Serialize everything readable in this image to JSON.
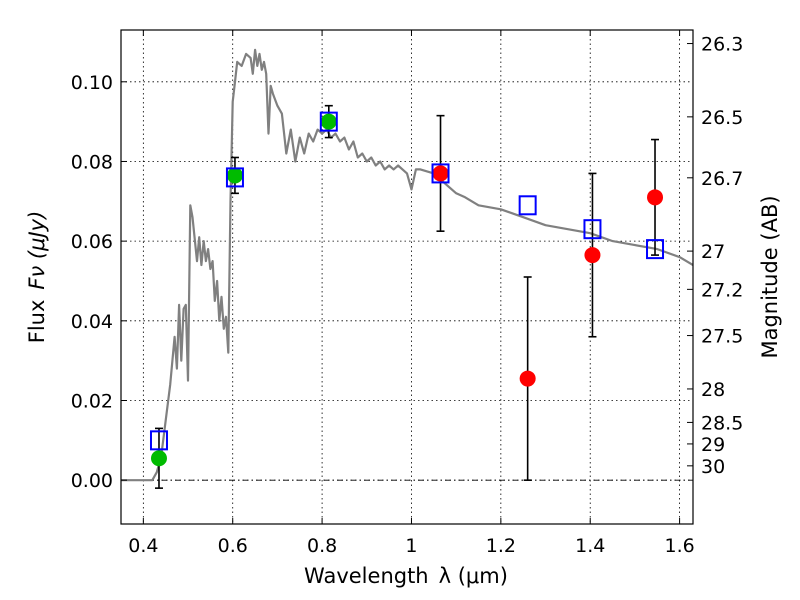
{
  "chart_data": {
    "type": "scatter",
    "title": "",
    "xlabel": "Wavelength",
    "xlabel_unit": "λ (μm)",
    "ylabel": "Flux",
    "ylabel_unit": "Fν (μJy)",
    "y2label": "Magnitude (AB)",
    "xlim": [
      0.35,
      1.63
    ],
    "ylim": [
      -0.011,
      0.113
    ],
    "grid": true,
    "x_ticks": [
      0.4,
      0.6,
      0.8,
      1.0,
      1.2,
      1.4,
      1.6
    ],
    "x_tick_labels": [
      "0.4",
      "0.6",
      "0.8",
      "1",
      "1.2",
      "1.4",
      "1.6"
    ],
    "y_ticks": [
      0.0,
      0.02,
      0.04,
      0.06,
      0.08,
      0.1
    ],
    "y_tick_labels": [
      "0.00",
      "0.02",
      "0.04",
      "0.06",
      "0.08",
      "0.10"
    ],
    "mag_ticks": [
      {
        "label": "26.3",
        "flux": 0.1096
      },
      {
        "label": "26.5",
        "flux": 0.0912
      },
      {
        "label": "26.7",
        "flux": 0.0759
      },
      {
        "label": "27",
        "flux": 0.0575
      },
      {
        "label": "27.2",
        "flux": 0.0479
      },
      {
        "label": "27.5",
        "flux": 0.0363
      },
      {
        "label": "28",
        "flux": 0.0229
      },
      {
        "label": "28.5",
        "flux": 0.0145
      },
      {
        "label": "29",
        "flux": 0.0091
      },
      {
        "label": "30",
        "flux": 0.0036
      }
    ],
    "colors": {
      "model": "#808080",
      "green_points": "#00bb00",
      "red_points": "#ff0000",
      "model_boxes": "#0000ff",
      "errorbars": "#000000"
    },
    "series": [
      {
        "name": "model_sed",
        "kind": "line",
        "x": [
          0.35,
          0.42,
          0.43,
          0.44,
          0.45,
          0.46,
          0.47,
          0.475,
          0.48,
          0.485,
          0.49,
          0.495,
          0.5,
          0.505,
          0.51,
          0.52,
          0.525,
          0.53,
          0.535,
          0.54,
          0.545,
          0.55,
          0.555,
          0.56,
          0.565,
          0.57,
          0.575,
          0.58,
          0.585,
          0.59,
          0.595,
          0.6,
          0.605,
          0.61,
          0.62,
          0.63,
          0.64,
          0.645,
          0.65,
          0.655,
          0.66,
          0.665,
          0.67,
          0.675,
          0.68,
          0.685,
          0.69,
          0.7,
          0.71,
          0.72,
          0.73,
          0.74,
          0.75,
          0.76,
          0.77,
          0.78,
          0.79,
          0.8,
          0.81,
          0.82,
          0.83,
          0.84,
          0.85,
          0.86,
          0.87,
          0.88,
          0.89,
          0.9,
          0.91,
          0.92,
          0.93,
          0.94,
          0.95,
          0.96,
          0.97,
          0.98,
          0.99,
          1.0,
          1.01,
          1.02,
          1.05,
          1.08,
          1.1,
          1.12,
          1.15,
          1.2,
          1.25,
          1.3,
          1.35,
          1.4,
          1.45,
          1.5,
          1.55,
          1.6,
          1.63
        ],
        "y": [
          0.0,
          0.0,
          0.002,
          0.006,
          0.015,
          0.024,
          0.036,
          0.028,
          0.044,
          0.03,
          0.043,
          0.044,
          0.025,
          0.069,
          0.066,
          0.055,
          0.061,
          0.054,
          0.06,
          0.055,
          0.058,
          0.053,
          0.055,
          0.045,
          0.05,
          0.04,
          0.046,
          0.038,
          0.041,
          0.032,
          0.07,
          0.095,
          0.1,
          0.105,
          0.104,
          0.107,
          0.106,
          0.102,
          0.108,
          0.104,
          0.107,
          0.103,
          0.105,
          0.102,
          0.087,
          0.099,
          0.097,
          0.094,
          0.092,
          0.082,
          0.088,
          0.08,
          0.086,
          0.082,
          0.087,
          0.085,
          0.088,
          0.087,
          0.088,
          0.086,
          0.087,
          0.085,
          0.086,
          0.083,
          0.085,
          0.081,
          0.082,
          0.08,
          0.081,
          0.079,
          0.08,
          0.078,
          0.079,
          0.078,
          0.079,
          0.078,
          0.077,
          0.073,
          0.078,
          0.078,
          0.077,
          0.074,
          0.072,
          0.071,
          0.069,
          0.068,
          0.066,
          0.064,
          0.063,
          0.062,
          0.06,
          0.059,
          0.058,
          0.056,
          0.054
        ]
      },
      {
        "name": "model_photometry",
        "kind": "open-square",
        "x": [
          0.435,
          0.605,
          0.815,
          1.065,
          1.26,
          1.405,
          1.545
        ],
        "y": [
          0.01,
          0.076,
          0.09,
          0.077,
          0.069,
          0.063,
          0.058
        ]
      },
      {
        "name": "observed_hst_optical",
        "kind": "filled-circle",
        "color": "green",
        "x": [
          0.435,
          0.605,
          0.815
        ],
        "y": [
          0.0055,
          0.0765,
          0.09
        ],
        "yerr": [
          0.0075,
          0.0045,
          0.004
        ]
      },
      {
        "name": "observed_nir",
        "kind": "filled-circle",
        "color": "red",
        "x": [
          1.065,
          1.26,
          1.405,
          1.545
        ],
        "y": [
          0.077,
          0.0255,
          0.0565,
          0.071
        ],
        "yerr": [
          0.0145,
          0.0255,
          0.0205,
          0.0145
        ]
      }
    ]
  }
}
